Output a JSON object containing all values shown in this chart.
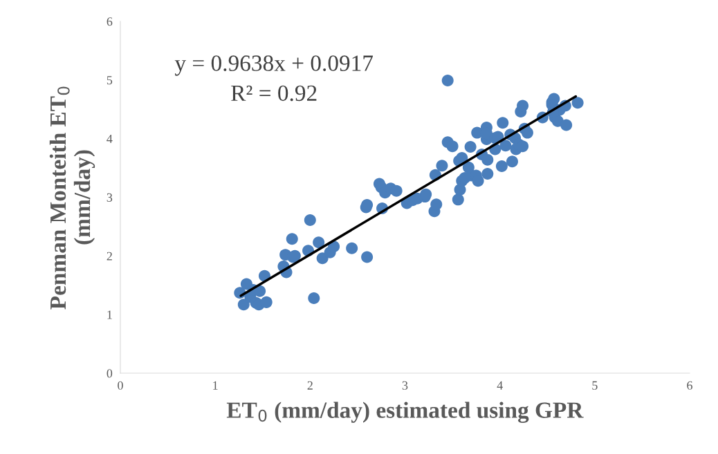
{
  "chart_data": {
    "type": "scatter",
    "xlabel": "ET$_{0}$ (mm/day) estimated using GPR",
    "ylabel": "Penman Monteith ET$_{0}$\n(mm/day)",
    "annotations": [
      "y = 0.9638x + 0.0917",
      "R² = 0.92"
    ],
    "xlim": [
      0,
      6
    ],
    "ylim": [
      0,
      6
    ],
    "xticks": [
      0,
      1,
      2,
      3,
      4,
      5,
      6
    ],
    "yticks": [
      0,
      1,
      2,
      3,
      4,
      5,
      6
    ],
    "grid": false,
    "legend": false,
    "marker": "circle",
    "series": [
      {
        "color": "#4a7ebb",
        "x": [
          1.26,
          1.3,
          1.33,
          1.37,
          1.4,
          1.43,
          1.46,
          1.47,
          1.54,
          1.52,
          1.72,
          1.74,
          1.75,
          1.81,
          1.82,
          1.84,
          1.98,
          2.0,
          2.04,
          2.09,
          2.13,
          2.21,
          2.25,
          2.44,
          2.6,
          2.59,
          2.6,
          2.73,
          2.75,
          2.76,
          2.79,
          2.85,
          2.91,
          3.02,
          3.08,
          3.13,
          3.21,
          3.22,
          3.31,
          3.33,
          3.32,
          3.39,
          3.45,
          3.45,
          3.5,
          3.56,
          3.58,
          3.57,
          3.6,
          3.6,
          3.63,
          3.67,
          3.69,
          3.7,
          3.76,
          3.75,
          3.77,
          3.81,
          3.86,
          3.86,
          3.86,
          3.87,
          3.87,
          3.95,
          3.98,
          3.95,
          4.03,
          4.02,
          4.06,
          4.11,
          4.13,
          4.16,
          4.17,
          4.2,
          4.22,
          4.24,
          4.24,
          4.26,
          4.29,
          4.45,
          4.55,
          4.57,
          4.58,
          4.61,
          4.63,
          4.69,
          4.7,
          4.82,
          4.55,
          4.56
        ],
        "values": [
          1.37,
          1.17,
          1.52,
          1.3,
          1.42,
          1.2,
          1.17,
          1.4,
          1.21,
          1.66,
          1.82,
          2.02,
          1.72,
          2.29,
          1.98,
          2.0,
          2.09,
          2.61,
          1.28,
          2.23,
          1.96,
          2.06,
          2.16,
          2.13,
          1.98,
          2.83,
          2.87,
          3.23,
          3.17,
          2.81,
          3.08,
          3.15,
          3.11,
          2.9,
          2.95,
          2.98,
          3.01,
          3.05,
          2.76,
          2.88,
          3.38,
          3.54,
          4.99,
          3.94,
          3.87,
          2.96,
          3.13,
          3.62,
          3.67,
          3.28,
          3.33,
          3.51,
          3.86,
          3.37,
          4.1,
          3.37,
          3.28,
          3.73,
          4.19,
          3.99,
          4.09,
          3.64,
          3.4,
          4.01,
          4.03,
          3.82,
          4.27,
          3.53,
          3.88,
          4.07,
          3.61,
          4.01,
          3.82,
          3.9,
          4.46,
          4.56,
          3.87,
          4.17,
          4.1,
          4.36,
          4.62,
          4.68,
          4.36,
          4.3,
          4.49,
          4.56,
          4.23,
          4.61,
          4.58,
          4.45
        ]
      },
      {
        "type": "line",
        "color": "#000000",
        "line_style": "solid",
        "marker": "none",
        "x": [
          1.27,
          4.8
        ],
        "values": [
          1.32,
          4.72
        ]
      }
    ]
  }
}
